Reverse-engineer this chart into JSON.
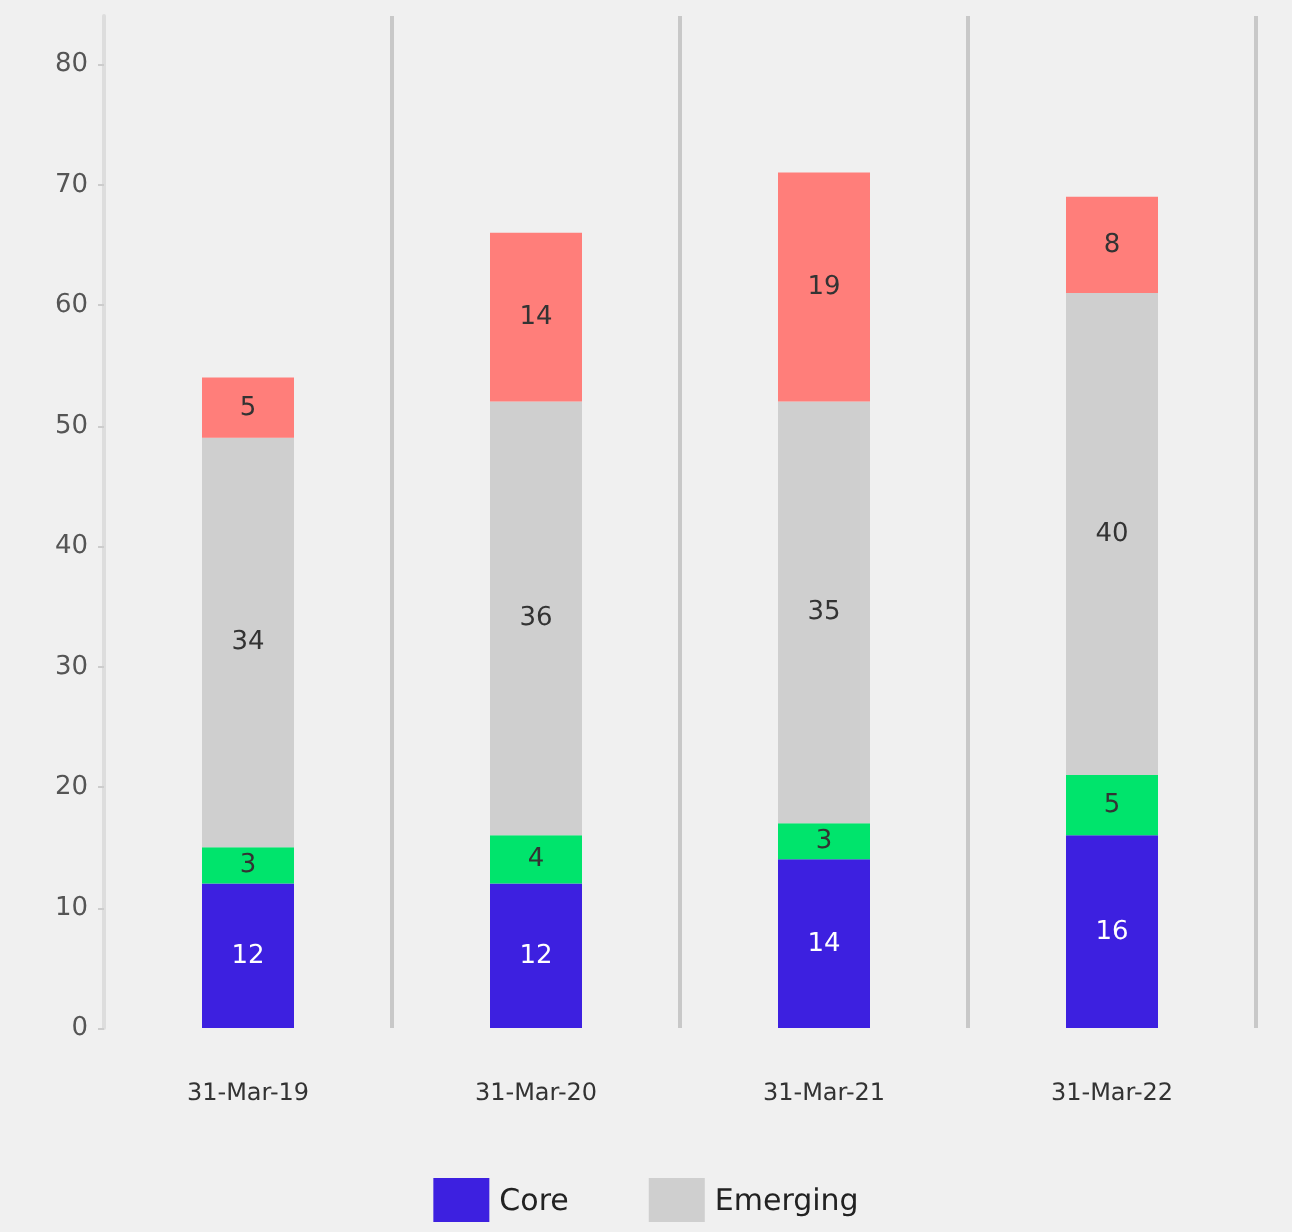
{
  "chart_data": {
    "type": "bar",
    "stacked": true,
    "categories": [
      "31-Mar-19",
      "31-Mar-20",
      "31-Mar-21",
      "31-Mar-22"
    ],
    "series": [
      {
        "name": "Core",
        "color": "#3d20e0",
        "values": [
          12,
          12,
          14,
          16
        ]
      },
      {
        "color": "#00e46c",
        "values": [
          3,
          4,
          3,
          5
        ]
      },
      {
        "name": "Emerging",
        "color": "#cfcfcf",
        "values": [
          34,
          36,
          35,
          40
        ]
      },
      {
        "color": "#ff7e7a",
        "values": [
          5,
          14,
          19,
          8
        ]
      }
    ],
    "ylim": [
      0,
      84
    ],
    "yticks": [
      0,
      10,
      20,
      30,
      40,
      50,
      60,
      70,
      80
    ],
    "grid": "x",
    "legend": "bottom",
    "data_labels": true
  }
}
